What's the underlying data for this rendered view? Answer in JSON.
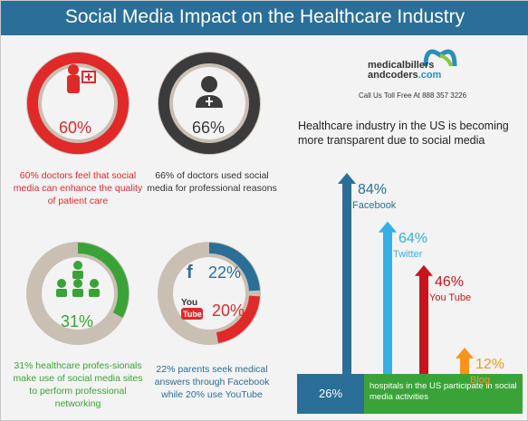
{
  "header": {
    "title": "Social Media Impact on the Healthcare Industry"
  },
  "logo": {
    "name_line1": "medicalbillers",
    "name_line2": "andcoders",
    "name_suffix": ".com",
    "toll": "Call Us Toll Free At 888 357 3226"
  },
  "colors": {
    "header": "#2a6f97",
    "red": "#e02929",
    "dark": "#3b3b3b",
    "green": "#3aa338",
    "blue": "#2a6f97",
    "lightblue": "#35b0e6",
    "darkred": "#c4161c",
    "orange": "#f7941d"
  },
  "stats": {
    "doctors_enhance": {
      "pct": "60%",
      "caption": "60% doctors feel that social media can enhance the quality of patient care"
    },
    "doctors_used": {
      "pct": "66%",
      "caption": "66% of doctors used social media  for professional reasons"
    },
    "professionals": {
      "pct": "31%",
      "caption": "31% healthcare profes-sionals make use of social media sites to perform professional networking"
    },
    "parents": {
      "facebook_pct": "22%",
      "youtube_pct": "20%",
      "caption": "22% parents seek medical answers through Facebook while 20% use YouTube"
    }
  },
  "transparency": {
    "headline": "Healthcare industry in the US is becoming more transparent due to social media"
  },
  "chart_data": {
    "type": "bar",
    "categories": [
      "Facebook",
      "Twitter",
      "You Tube",
      "Blog"
    ],
    "values": [
      84,
      64,
      46,
      12
    ],
    "value_labels": [
      "84%",
      "64%",
      "46%",
      "12%"
    ]
  },
  "hospitals": {
    "pct": "26%",
    "text": "hospitals in the US participate in social media activities"
  }
}
